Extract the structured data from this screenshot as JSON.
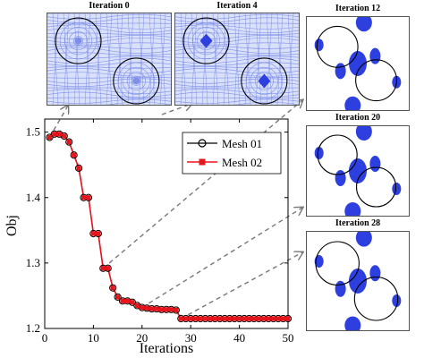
{
  "chart_data": {
    "type": "line",
    "xlabel": "Iterations",
    "ylabel": "Obj",
    "xlim": [
      0,
      50
    ],
    "ylim": [
      1.2,
      1.52
    ],
    "xticks": [
      0,
      10,
      20,
      30,
      40,
      50
    ],
    "yticks": [
      1.2,
      1.3,
      1.4,
      1.5
    ],
    "legend_position": "top-right",
    "grid": false,
    "series": [
      {
        "name": "Mesh 01",
        "marker": "circle",
        "color": "#000000",
        "x": [
          1,
          2,
          3,
          4,
          5,
          6,
          7,
          8,
          9,
          10,
          11,
          12,
          13,
          14,
          15,
          16,
          17,
          18,
          19,
          20,
          21,
          22,
          23,
          24,
          25,
          26,
          27,
          28,
          29,
          30,
          31,
          32,
          33,
          34,
          35,
          36,
          37,
          38,
          39,
          40,
          41,
          42,
          43,
          44,
          45,
          46,
          47,
          48,
          49,
          50
        ],
        "y": [
          1.492,
          1.497,
          1.497,
          1.494,
          1.485,
          1.465,
          1.445,
          1.4,
          1.4,
          1.345,
          1.345,
          1.292,
          1.292,
          1.262,
          1.248,
          1.242,
          1.242,
          1.24,
          1.235,
          1.232,
          1.231,
          1.23,
          1.23,
          1.229,
          1.229,
          1.229,
          1.228,
          1.215,
          1.215,
          1.215,
          1.215,
          1.215,
          1.215,
          1.215,
          1.215,
          1.215,
          1.215,
          1.215,
          1.215,
          1.215,
          1.215,
          1.215,
          1.215,
          1.215,
          1.215,
          1.215,
          1.215,
          1.215,
          1.215,
          1.215
        ]
      },
      {
        "name": "Mesh 02",
        "marker": "square",
        "color": "#e8141c",
        "x": [
          1,
          2,
          3,
          4,
          5,
          6,
          7,
          8,
          9,
          10,
          11,
          12,
          13,
          14,
          15,
          16,
          17,
          18,
          19,
          20,
          21,
          22,
          23,
          24,
          25,
          26,
          27,
          28,
          29,
          30,
          31,
          32,
          33,
          34,
          35,
          36,
          37,
          38,
          39,
          40,
          41,
          42,
          43,
          44,
          45,
          46,
          47,
          48,
          49,
          50
        ],
        "y": [
          1.492,
          1.497,
          1.497,
          1.494,
          1.485,
          1.465,
          1.445,
          1.4,
          1.4,
          1.345,
          1.345,
          1.292,
          1.292,
          1.262,
          1.248,
          1.242,
          1.242,
          1.24,
          1.235,
          1.232,
          1.231,
          1.23,
          1.23,
          1.229,
          1.229,
          1.229,
          1.228,
          1.215,
          1.215,
          1.215,
          1.215,
          1.215,
          1.215,
          1.215,
          1.215,
          1.215,
          1.215,
          1.215,
          1.215,
          1.215,
          1.215,
          1.215,
          1.215,
          1.215,
          1.215,
          1.215,
          1.215,
          1.215,
          1.215,
          1.215
        ]
      }
    ],
    "insets": [
      {
        "title": "Iteration 0",
        "iteration": 0
      },
      {
        "title": "Iteration 4",
        "iteration": 4
      },
      {
        "title": "Iteration 12",
        "iteration": 12
      },
      {
        "title": "Iteration 20",
        "iteration": 20
      },
      {
        "title": "Iteration 28",
        "iteration": 28
      }
    ],
    "colors": {
      "mesh_blue": "#2e3fe0",
      "mesh_line": "#7f8fe8",
      "arrow": "#777777"
    }
  }
}
